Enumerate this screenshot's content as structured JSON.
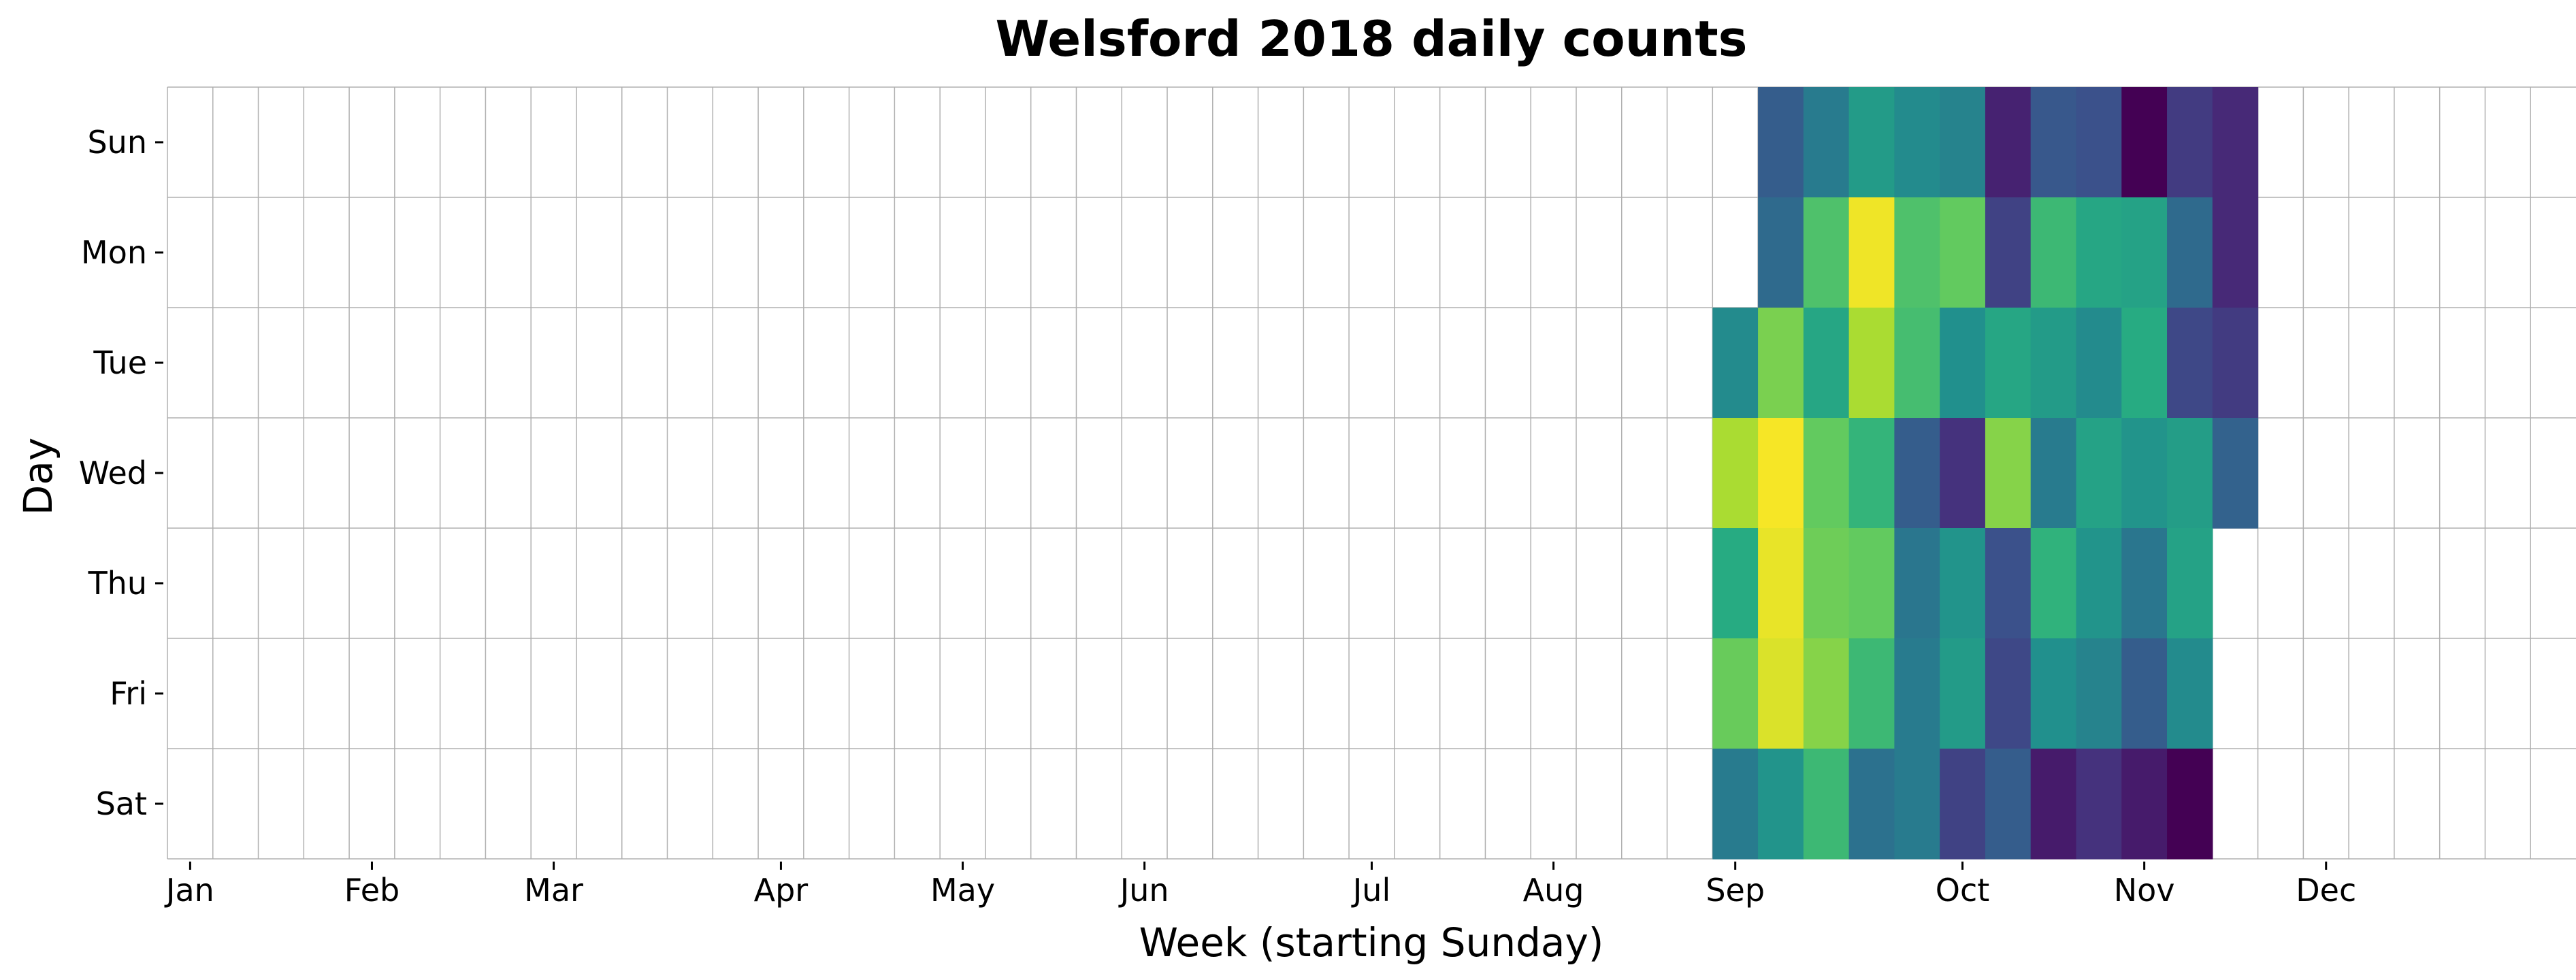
{
  "chart_data": {
    "type": "heatmap",
    "title": "Welsford 2018 daily counts",
    "xlabel": "Week (starting Sunday)",
    "ylabel": "Day",
    "rows": [
      "Sun",
      "Mon",
      "Tue",
      "Wed",
      "Thu",
      "Fri",
      "Sat"
    ],
    "x_tick_labels": [
      {
        "label": "Jan",
        "week": 0
      },
      {
        "label": "Feb",
        "week": 4
      },
      {
        "label": "Mar",
        "week": 8
      },
      {
        "label": "Apr",
        "week": 13
      },
      {
        "label": "May",
        "week": 17
      },
      {
        "label": "Jun",
        "week": 21
      },
      {
        "label": "Jul",
        "week": 26
      },
      {
        "label": "Aug",
        "week": 30
      },
      {
        "label": "Sep",
        "week": 34
      },
      {
        "label": "Oct",
        "week": 39
      },
      {
        "label": "Nov",
        "week": 43
      },
      {
        "label": "Dec",
        "week": 47
      }
    ],
    "num_weeks": 53,
    "first_data_week": 34,
    "colormap": "viridis",
    "value_scale": "relative 0-1 (no colorbar shown)",
    "grid": true,
    "values": [
      [
        null,
        0.3,
        0.42,
        0.55,
        0.48,
        0.45,
        0.1,
        0.28,
        0.25,
        0.0,
        0.18,
        0.12
      ],
      [
        null,
        0.35,
        0.72,
        0.98,
        0.72,
        0.76,
        0.2,
        0.68,
        0.6,
        0.58,
        0.35,
        0.12
      ],
      [
        0.48,
        0.8,
        0.6,
        0.88,
        0.7,
        0.5,
        0.6,
        0.55,
        0.48,
        0.62,
        0.22,
        0.18
      ],
      [
        0.88,
        0.99,
        0.76,
        0.66,
        0.3,
        0.15,
        0.82,
        0.42,
        0.58,
        0.52,
        0.56,
        0.32
      ],
      [
        0.62,
        0.97,
        0.78,
        0.76,
        0.4,
        0.52,
        0.25,
        0.65,
        0.52,
        0.4,
        0.58,
        null
      ],
      [
        0.77,
        0.95,
        0.82,
        0.68,
        0.42,
        0.55,
        0.22,
        0.5,
        0.45,
        0.3,
        0.48,
        null
      ],
      [
        0.42,
        0.52,
        0.68,
        0.38,
        0.42,
        0.2,
        0.3,
        0.08,
        0.15,
        0.08,
        0.0,
        null
      ]
    ]
  },
  "colors": {
    "grid": "#b0b0b0",
    "background": "#ffffff"
  }
}
